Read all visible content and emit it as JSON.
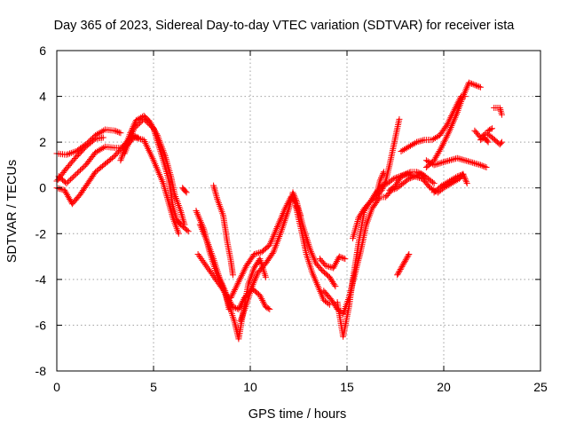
{
  "chart_data": {
    "type": "scatter",
    "title": "Day 365 of 2023, Sidereal Day-to-day VTEC variation (SDTVAR) for receiver ista",
    "xlabel": "GPS time / hours",
    "ylabel": "SDTVAR / TECUs",
    "xlim": [
      0,
      25
    ],
    "ylim": [
      -8,
      6
    ],
    "xticks": [
      0,
      5,
      10,
      15,
      20,
      25
    ],
    "yticks": [
      -8,
      -6,
      -4,
      -2,
      0,
      2,
      4,
      6
    ],
    "grid": true,
    "marker": "+",
    "color": "#ff0000",
    "tracks": [
      [
        [
          0.0,
          1.5
        ],
        [
          0.5,
          1.45
        ],
        [
          1.0,
          1.6
        ],
        [
          1.5,
          1.9
        ],
        [
          2.0,
          2.3
        ],
        [
          2.5,
          2.55
        ],
        [
          3.0,
          2.5
        ],
        [
          3.3,
          2.4
        ]
      ],
      [
        [
          0.0,
          0.3
        ],
        [
          0.5,
          0.85
        ],
        [
          1.0,
          1.35
        ],
        [
          1.5,
          1.8
        ],
        [
          2.0,
          2.15
        ],
        [
          2.4,
          2.2
        ]
      ],
      [
        [
          0.1,
          0.5
        ],
        [
          0.5,
          0.2
        ],
        [
          1.0,
          0.6
        ],
        [
          1.5,
          1.0
        ],
        [
          2.0,
          1.55
        ],
        [
          2.5,
          1.8
        ],
        [
          3.0,
          1.75
        ],
        [
          3.5,
          1.75
        ],
        [
          4.0,
          2.2
        ],
        [
          4.5,
          2.1
        ],
        [
          5.0,
          1.2
        ],
        [
          5.5,
          0.2
        ],
        [
          6.0,
          -1.3
        ],
        [
          6.3,
          -2.0
        ]
      ],
      [
        [
          0.0,
          0.0
        ],
        [
          0.4,
          -0.1
        ],
        [
          0.8,
          -0.7
        ],
        [
          1.2,
          -0.3
        ],
        [
          1.6,
          0.2
        ],
        [
          2.0,
          0.7
        ],
        [
          2.5,
          1.05
        ],
        [
          3.0,
          1.4
        ],
        [
          3.5,
          1.9
        ],
        [
          3.9,
          2.3
        ],
        [
          4.2,
          2.2
        ]
      ],
      [
        [
          3.3,
          1.2
        ],
        [
          3.5,
          1.7
        ],
        [
          3.8,
          2.4
        ],
        [
          4.1,
          2.95
        ],
        [
          4.5,
          3.15
        ],
        [
          4.8,
          2.9
        ],
        [
          5.2,
          2.3
        ],
        [
          5.6,
          1.4
        ],
        [
          5.9,
          0.5
        ],
        [
          6.1,
          -0.3
        ],
        [
          6.4,
          -1.0
        ],
        [
          6.6,
          -1.6
        ]
      ],
      [
        [
          3.5,
          1.5
        ],
        [
          4.0,
          2.6
        ],
        [
          4.5,
          3.0
        ],
        [
          5.0,
          2.6
        ],
        [
          5.5,
          1.2
        ],
        [
          5.8,
          0.3
        ],
        [
          6.0,
          -0.8
        ],
        [
          6.2,
          -1.4
        ],
        [
          6.4,
          -1.6
        ],
        [
          6.8,
          -1.9
        ]
      ],
      [
        [
          6.5,
          0.0
        ],
        [
          6.7,
          -0.2
        ]
      ],
      [
        [
          7.2,
          -1.0
        ],
        [
          7.6,
          -1.8
        ],
        [
          7.9,
          -2.8
        ],
        [
          8.2,
          -3.6
        ],
        [
          8.6,
          -4.4
        ],
        [
          8.9,
          -5.1
        ],
        [
          9.2,
          -5.9
        ],
        [
          9.4,
          -6.6
        ],
        [
          9.6,
          -5.6
        ],
        [
          9.9,
          -4.2
        ],
        [
          10.2,
          -3.5
        ],
        [
          10.5,
          -3.1
        ],
        [
          10.8,
          -3.9
        ]
      ],
      [
        [
          7.4,
          -1.6
        ],
        [
          7.8,
          -2.4
        ],
        [
          8.1,
          -3.1
        ],
        [
          8.4,
          -3.9
        ],
        [
          8.7,
          -4.5
        ],
        [
          8.9,
          -5.3
        ]
      ],
      [
        [
          7.3,
          -2.9
        ],
        [
          7.8,
          -3.5
        ],
        [
          8.3,
          -4.1
        ],
        [
          8.8,
          -4.7
        ],
        [
          9.1,
          -5.2
        ],
        [
          9.4,
          -5.3
        ],
        [
          9.7,
          -4.8
        ],
        [
          10.1,
          -4.4
        ],
        [
          10.5,
          -4.7
        ],
        [
          10.8,
          -5.2
        ],
        [
          11.0,
          -5.3
        ]
      ],
      [
        [
          8.1,
          0.1
        ],
        [
          8.3,
          -0.5
        ],
        [
          8.6,
          -1.2
        ],
        [
          8.8,
          -2.3
        ],
        [
          9.0,
          -3.2
        ],
        [
          9.1,
          -3.8
        ]
      ],
      [
        [
          9.0,
          -4.8
        ],
        [
          9.4,
          -4.1
        ],
        [
          9.8,
          -3.4
        ],
        [
          10.2,
          -2.9
        ],
        [
          10.6,
          -2.8
        ],
        [
          11.0,
          -2.5
        ],
        [
          11.4,
          -1.7
        ],
        [
          11.8,
          -0.9
        ],
        [
          12.1,
          -0.4
        ],
        [
          12.3,
          -0.6
        ],
        [
          12.6,
          -1.7
        ],
        [
          12.9,
          -2.9
        ],
        [
          13.2,
          -3.7
        ],
        [
          13.5,
          -4.3
        ],
        [
          13.8,
          -4.9
        ],
        [
          14.1,
          -5.1
        ]
      ],
      [
        [
          9.5,
          -5.8
        ],
        [
          9.8,
          -5.1
        ],
        [
          10.1,
          -4.3
        ],
        [
          10.4,
          -3.7
        ],
        [
          10.8,
          -3.3
        ],
        [
          11.2,
          -2.8
        ],
        [
          11.6,
          -1.9
        ],
        [
          12.0,
          -0.9
        ],
        [
          12.2,
          -0.2
        ],
        [
          12.4,
          -0.6
        ],
        [
          12.7,
          -1.6
        ],
        [
          13.1,
          -2.7
        ],
        [
          13.4,
          -3.3
        ],
        [
          13.7,
          -3.6
        ],
        [
          14.1,
          -3.9
        ],
        [
          14.4,
          -4.3
        ]
      ],
      [
        [
          12.4,
          -0.8
        ],
        [
          12.6,
          -1.2
        ]
      ],
      [
        [
          13.6,
          -3.1
        ],
        [
          13.9,
          -3.4
        ],
        [
          14.3,
          -3.5
        ],
        [
          14.6,
          -3.0
        ],
        [
          14.9,
          -3.1
        ]
      ],
      [
        [
          13.8,
          -4.5
        ],
        [
          14.2,
          -4.9
        ],
        [
          14.5,
          -5.3
        ],
        [
          14.8,
          -5.5
        ],
        [
          15.1,
          -4.8
        ],
        [
          15.4,
          -3.8
        ],
        [
          15.7,
          -2.8
        ],
        [
          16.0,
          -1.6
        ],
        [
          16.3,
          -0.9
        ],
        [
          16.7,
          -0.4
        ],
        [
          17.0,
          -0.4
        ],
        [
          17.3,
          -0.1
        ],
        [
          17.6,
          0.0
        ],
        [
          17.9,
          0.2
        ],
        [
          18.2,
          0.4
        ],
        [
          18.5,
          0.5
        ],
        [
          18.8,
          0.6
        ],
        [
          19.0,
          0.5
        ]
      ],
      [
        [
          14.5,
          -5.0
        ],
        [
          14.8,
          -6.5
        ],
        [
          15.1,
          -5.2
        ],
        [
          15.3,
          -4.0
        ],
        [
          15.6,
          -2.4
        ],
        [
          15.9,
          -1.0
        ],
        [
          16.2,
          -0.6
        ],
        [
          16.5,
          -0.4
        ],
        [
          16.8,
          -0.1
        ],
        [
          17.0,
          0.3
        ],
        [
          17.2,
          1.0
        ],
        [
          17.4,
          1.8
        ],
        [
          17.6,
          2.6
        ],
        [
          17.7,
          3.0
        ]
      ],
      [
        [
          15.3,
          -2.2
        ],
        [
          15.6,
          -1.3
        ],
        [
          15.9,
          -0.9
        ],
        [
          16.2,
          -0.6
        ],
        [
          16.5,
          -0.2
        ],
        [
          16.8,
          0.1
        ],
        [
          17.1,
          0.2
        ],
        [
          17.4,
          0.4
        ],
        [
          17.7,
          0.5
        ],
        [
          18.0,
          0.6
        ],
        [
          18.3,
          0.7
        ],
        [
          18.6,
          0.7
        ],
        [
          18.9,
          0.6
        ],
        [
          19.2,
          0.4
        ],
        [
          19.5,
          0.2
        ]
      ],
      [
        [
          16.5,
          -0.4
        ],
        [
          16.7,
          0.3
        ],
        [
          16.9,
          0.7
        ]
      ],
      [
        [
          17.2,
          -0.1
        ],
        [
          17.5,
          0.1
        ],
        [
          17.8,
          0.5
        ],
        [
          18.1,
          0.6
        ],
        [
          18.5,
          0.5
        ],
        [
          18.9,
          0.4
        ],
        [
          19.3,
          0.0
        ],
        [
          19.7,
          -0.2
        ],
        [
          20.0,
          0.0
        ],
        [
          20.4,
          0.2
        ],
        [
          20.8,
          0.4
        ],
        [
          21.0,
          0.6
        ]
      ],
      [
        [
          17.6,
          -3.8
        ],
        [
          17.8,
          -3.5
        ],
        [
          18.0,
          -3.2
        ],
        [
          18.2,
          -2.9
        ]
      ],
      [
        [
          17.8,
          1.6
        ],
        [
          18.2,
          1.8
        ],
        [
          18.6,
          2.0
        ],
        [
          19.0,
          2.1
        ],
        [
          19.4,
          2.1
        ],
        [
          19.8,
          2.3
        ],
        [
          20.2,
          2.8
        ],
        [
          20.6,
          3.5
        ],
        [
          20.9,
          4.0
        ],
        [
          21.1,
          4.0
        ]
      ],
      [
        [
          19.1,
          0.9
        ],
        [
          19.5,
          1.2
        ],
        [
          19.9,
          1.8
        ],
        [
          20.3,
          2.5
        ],
        [
          20.7,
          3.3
        ],
        [
          21.0,
          4.0
        ],
        [
          21.3,
          4.6
        ],
        [
          21.6,
          4.5
        ],
        [
          21.9,
          4.4
        ]
      ],
      [
        [
          19.1,
          1.2
        ],
        [
          19.5,
          1.0
        ],
        [
          19.9,
          1.1
        ],
        [
          20.3,
          1.2
        ],
        [
          20.7,
          1.3
        ],
        [
          21.1,
          1.2
        ],
        [
          21.5,
          1.1
        ],
        [
          21.9,
          1.0
        ],
        [
          22.2,
          0.9
        ]
      ],
      [
        [
          19.5,
          -0.2
        ],
        [
          19.9,
          0.1
        ],
        [
          20.3,
          0.3
        ],
        [
          20.7,
          0.5
        ],
        [
          21.0,
          0.6
        ],
        [
          21.2,
          0.2
        ]
      ],
      [
        [
          21.6,
          2.5
        ],
        [
          21.9,
          2.2
        ],
        [
          22.2,
          2.4
        ],
        [
          22.5,
          2.2
        ],
        [
          22.9,
          1.9
        ],
        [
          23.0,
          2.0
        ]
      ],
      [
        [
          21.9,
          2.1
        ],
        [
          22.1,
          2.2
        ],
        [
          22.3,
          2.0
        ]
      ],
      [
        [
          22.3,
          2.5
        ],
        [
          22.5,
          2.6
        ]
      ],
      [
        [
          22.6,
          3.5
        ],
        [
          22.9,
          3.5
        ],
        [
          23.0,
          3.2
        ]
      ]
    ]
  }
}
